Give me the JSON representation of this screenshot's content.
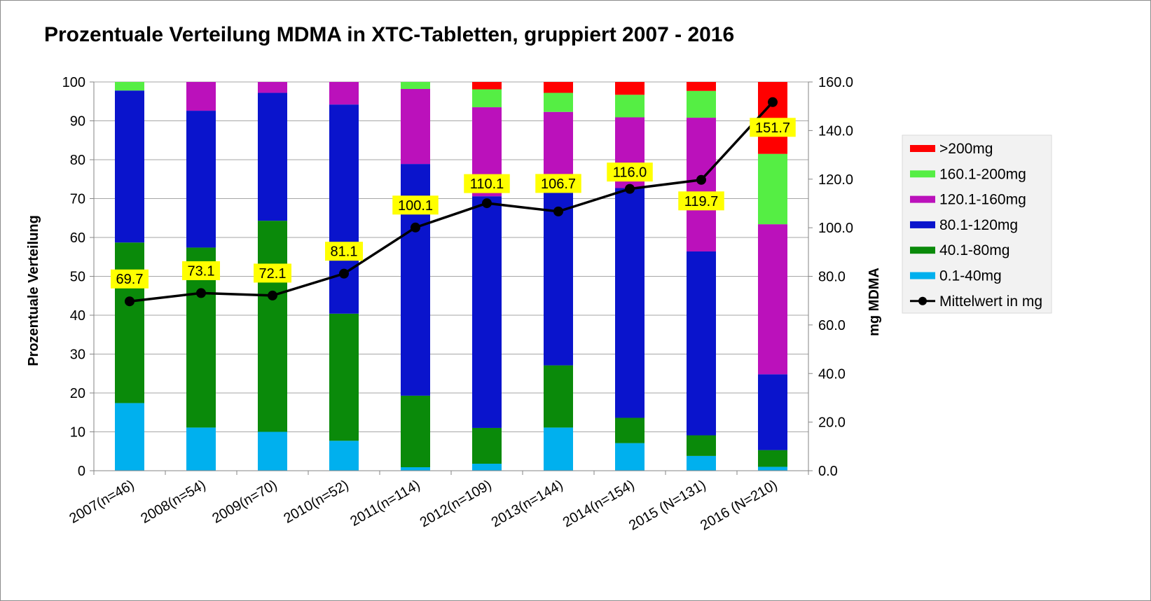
{
  "colors": {
    "gt200": "#ff0000",
    "r160_200": "#55ee44",
    "r120_160": "#bb11bb",
    "r80_120": "#0a14cc",
    "r40_80": "#0a8a0a",
    "r0_40": "#00b0ee",
    "mean": "#000000",
    "label_bg": "#ffff00"
  },
  "chart_data": {
    "type": "bar",
    "stacked": true,
    "title": "Prozentuale Verteilung MDMA in XTC-Tabletten, gruppiert 2007 - 2016",
    "ylabel": "Prozentuale Verteilung",
    "y2label": "mg MDMA",
    "ylim": [
      0,
      100
    ],
    "y2lim": [
      0,
      160
    ],
    "yticks": [
      "0",
      "10",
      "20",
      "30",
      "40",
      "50",
      "60",
      "70",
      "80",
      "90",
      "100"
    ],
    "y2ticks": [
      "0.0",
      "20.0",
      "40.0",
      "60.0",
      "80.0",
      "100.0",
      "120.0",
      "140.0",
      "160.0"
    ],
    "grid": true,
    "legend_position": "right",
    "categories": [
      "2007(n=46)",
      "2008(n=54)",
      "2009(n=70)",
      "2010(n=52)",
      "2011(n=114)",
      "2012(n=109)",
      "2013(n=144)",
      "2014(n=154)",
      "2015 (N=131)",
      "2016 (N=210)"
    ],
    "series": [
      {
        "name": "0.1-40mg",
        "color_key": "r0_40",
        "values": [
          17.4,
          11.1,
          10.0,
          7.7,
          0.9,
          1.8,
          11.1,
          7.1,
          3.8,
          1.0
        ]
      },
      {
        "name": "40.1-80mg",
        "color_key": "r40_80",
        "values": [
          41.3,
          46.3,
          54.3,
          32.7,
          18.4,
          9.2,
          16.0,
          6.5,
          5.3,
          4.3
        ]
      },
      {
        "name": "80.1-120mg",
        "color_key": "r80_120",
        "values": [
          39.1,
          35.2,
          32.9,
          53.8,
          59.6,
          59.6,
          45.1,
          59.1,
          47.3,
          19.5
        ]
      },
      {
        "name": "120.1-160mg",
        "color_key": "r120_160",
        "values": [
          0,
          7.4,
          2.8,
          5.8,
          19.3,
          22.9,
          20.1,
          18.2,
          34.4,
          38.6
        ]
      },
      {
        "name": "160.1-200mg",
        "color_key": "r160_200",
        "values": [
          2.2,
          0,
          0,
          0,
          1.8,
          4.6,
          4.9,
          5.8,
          6.9,
          18.1
        ]
      },
      {
        "name": ">200mg",
        "color_key": "gt200",
        "values": [
          0,
          0,
          0,
          0,
          0,
          1.9,
          2.8,
          3.3,
          2.3,
          18.5
        ]
      }
    ],
    "line_series": {
      "name": "Mittelwert in mg",
      "axis": "y2",
      "values": [
        69.7,
        73.1,
        72.1,
        81.1,
        100.1,
        110.1,
        106.7,
        116.0,
        119.7,
        151.7
      ],
      "labels": [
        "69.7",
        "73.1",
        "72.1",
        "81.1",
        "100.1",
        "110.1",
        "106.7",
        "116.0",
        "119.7",
        "151.7"
      ]
    },
    "legend": [
      ">200mg",
      "160.1-200mg",
      "120.1-160mg",
      "80.1-120mg",
      "40.1-80mg",
      "0.1-40mg",
      "Mittelwert in mg"
    ]
  }
}
